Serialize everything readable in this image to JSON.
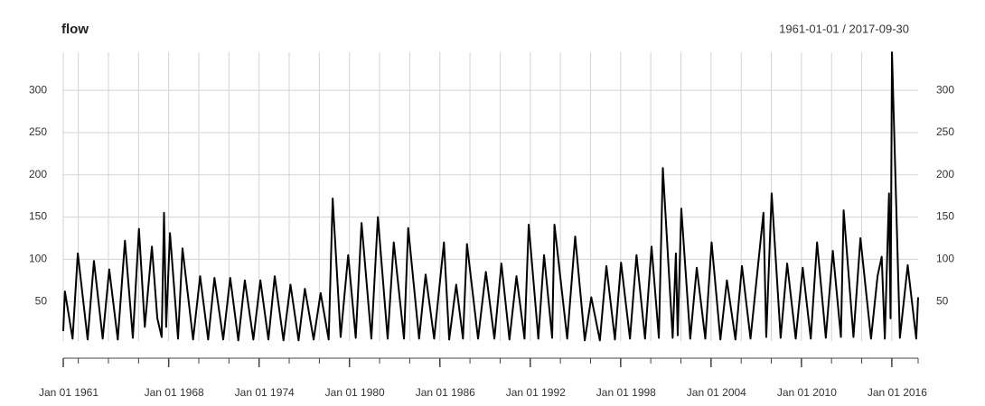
{
  "chart_data": {
    "type": "line",
    "title": "flow",
    "subtitle": "1961-01-01 / 2017-09-30",
    "x": [
      "1961-01-01",
      "1961-02-10",
      "1961-08-15",
      "1961-12-20",
      "1962-08-15",
      "1963-01-15",
      "1963-08-15",
      "1964-01-20",
      "1964-08-15",
      "1965-02-05",
      "1965-08-15",
      "1966-01-10",
      "1966-06-01",
      "1966-11-20",
      "1967-04-01",
      "1967-07-15",
      "1967-09-10",
      "1967-11-01",
      "1968-02-01",
      "1968-08-15",
      "1968-12-01",
      "1969-08-15",
      "1970-02-01",
      "1970-08-15",
      "1971-01-15",
      "1971-08-15",
      "1972-02-01",
      "1972-08-15",
      "1973-01-20",
      "1973-08-15",
      "1974-02-01",
      "1974-08-15",
      "1975-01-15",
      "1975-08-15",
      "1976-02-01",
      "1976-08-15",
      "1977-01-15",
      "1977-08-15",
      "1978-02-01",
      "1978-08-15",
      "1978-11-20",
      "1979-06-01",
      "1979-12-01",
      "1980-06-01",
      "1980-10-20",
      "1981-06-15",
      "1981-11-20",
      "1982-07-15",
      "1982-12-10",
      "1983-08-15",
      "1983-11-25",
      "1984-08-15",
      "1985-01-20",
      "1985-08-15",
      "1986-04-10",
      "1986-08-15",
      "1987-02-01",
      "1987-07-15",
      "1987-10-20",
      "1988-07-15",
      "1989-01-20",
      "1989-08-15",
      "1990-02-01",
      "1990-08-15",
      "1991-02-01",
      "1991-08-15",
      "1991-11-25",
      "1992-07-15",
      "1992-12-01",
      "1993-06-15",
      "1993-08-10",
      "1994-06-15",
      "1994-12-25",
      "1995-08-15",
      "1996-01-20",
      "1996-08-15",
      "1997-01-20",
      "1997-08-15",
      "1998-01-10",
      "1998-08-15",
      "1999-01-20",
      "1999-08-15",
      "2000-01-20",
      "2000-07-15",
      "2000-10-20",
      "2001-06-15",
      "2001-09-01",
      "2001-10-15",
      "2002-01-10",
      "2002-08-15",
      "2003-01-20",
      "2003-08-15",
      "2004-01-15",
      "2004-08-15",
      "2005-01-20",
      "2005-08-15",
      "2006-01-20",
      "2006-08-15",
      "2007-06-25",
      "2007-09-01",
      "2008-01-10",
      "2008-08-15",
      "2009-01-20",
      "2009-08-15",
      "2010-02-01",
      "2010-08-15",
      "2011-01-15",
      "2011-08-15",
      "2012-02-01",
      "2012-08-15",
      "2012-10-20",
      "2013-06-15",
      "2013-12-01",
      "2014-08-15",
      "2015-01-20",
      "2015-05-01",
      "2015-07-15",
      "2015-10-25",
      "2015-12-01",
      "2016-01-05",
      "2016-07-15",
      "2017-01-20",
      "2017-08-15",
      "2017-09-30"
    ],
    "series": [
      {
        "name": "flow",
        "color": "#000000",
        "values": [
          15,
          62,
          6,
          107,
          5,
          98,
          6,
          88,
          5,
          122,
          7,
          136,
          20,
          115,
          30,
          8,
          155,
          20,
          131,
          6,
          113,
          5,
          80,
          5,
          78,
          5,
          78,
          4,
          75,
          5,
          75,
          5,
          80,
          4,
          70,
          4,
          65,
          5,
          60,
          5,
          172,
          8,
          105,
          7,
          143,
          6,
          150,
          6,
          120,
          6,
          137,
          6,
          82,
          6,
          120,
          5,
          70,
          6,
          118,
          6,
          85,
          6,
          95,
          5,
          80,
          6,
          141,
          6,
          105,
          7,
          141,
          6,
          127,
          4,
          55,
          4,
          92,
          5,
          96,
          6,
          105,
          6,
          115,
          7,
          208,
          7,
          107,
          10,
          160,
          6,
          90,
          6,
          120,
          5,
          75,
          5,
          92,
          6,
          155,
          8,
          178,
          7,
          95,
          6,
          90,
          6,
          120,
          7,
          110,
          8,
          158,
          8,
          125,
          6,
          80,
          103,
          6,
          178,
          30,
          345,
          7,
          93,
          6,
          55
        ]
      }
    ],
    "xlim": [
      "1961-01-01",
      "2017-09-30"
    ],
    "xticks": [
      {
        "value": "1961-01-01",
        "label": "Jan 01 1961"
      },
      {
        "value": "1968-01-01",
        "label": "Jan 01 1968"
      },
      {
        "value": "1974-01-01",
        "label": "Jan 01 1974"
      },
      {
        "value": "1980-01-01",
        "label": "Jan 01 1980"
      },
      {
        "value": "1986-01-01",
        "label": "Jan 01 1986"
      },
      {
        "value": "1992-01-01",
        "label": "Jan 01 1992"
      },
      {
        "value": "1998-01-01",
        "label": "Jan 01 1998"
      },
      {
        "value": "2004-01-01",
        "label": "Jan 01 2004"
      },
      {
        "value": "2010-01-01",
        "label": "Jan 01 2010"
      },
      {
        "value": "2016-01-01",
        "label": "Jan 01 2016"
      }
    ],
    "minor_xticks": [
      "1961-01-01",
      "1962-01-01",
      "1964-01-01",
      "1966-01-01",
      "1968-01-01",
      "1970-01-01",
      "1972-01-01",
      "1974-01-01",
      "1976-01-01",
      "1978-01-01",
      "1980-01-01",
      "1982-01-01",
      "1984-01-01",
      "1986-01-01",
      "1988-01-01",
      "1990-01-01",
      "1992-01-01",
      "1994-01-01",
      "1996-01-01",
      "1998-01-01",
      "2000-01-01",
      "2002-01-01",
      "2004-01-01",
      "2006-01-01",
      "2008-01-01",
      "2010-01-01",
      "2012-01-01",
      "2014-01-01",
      "2016-01-01"
    ],
    "ylim": [
      0,
      345
    ],
    "yticks": [
      50,
      100,
      150,
      200,
      250,
      300
    ],
    "grid": true
  }
}
